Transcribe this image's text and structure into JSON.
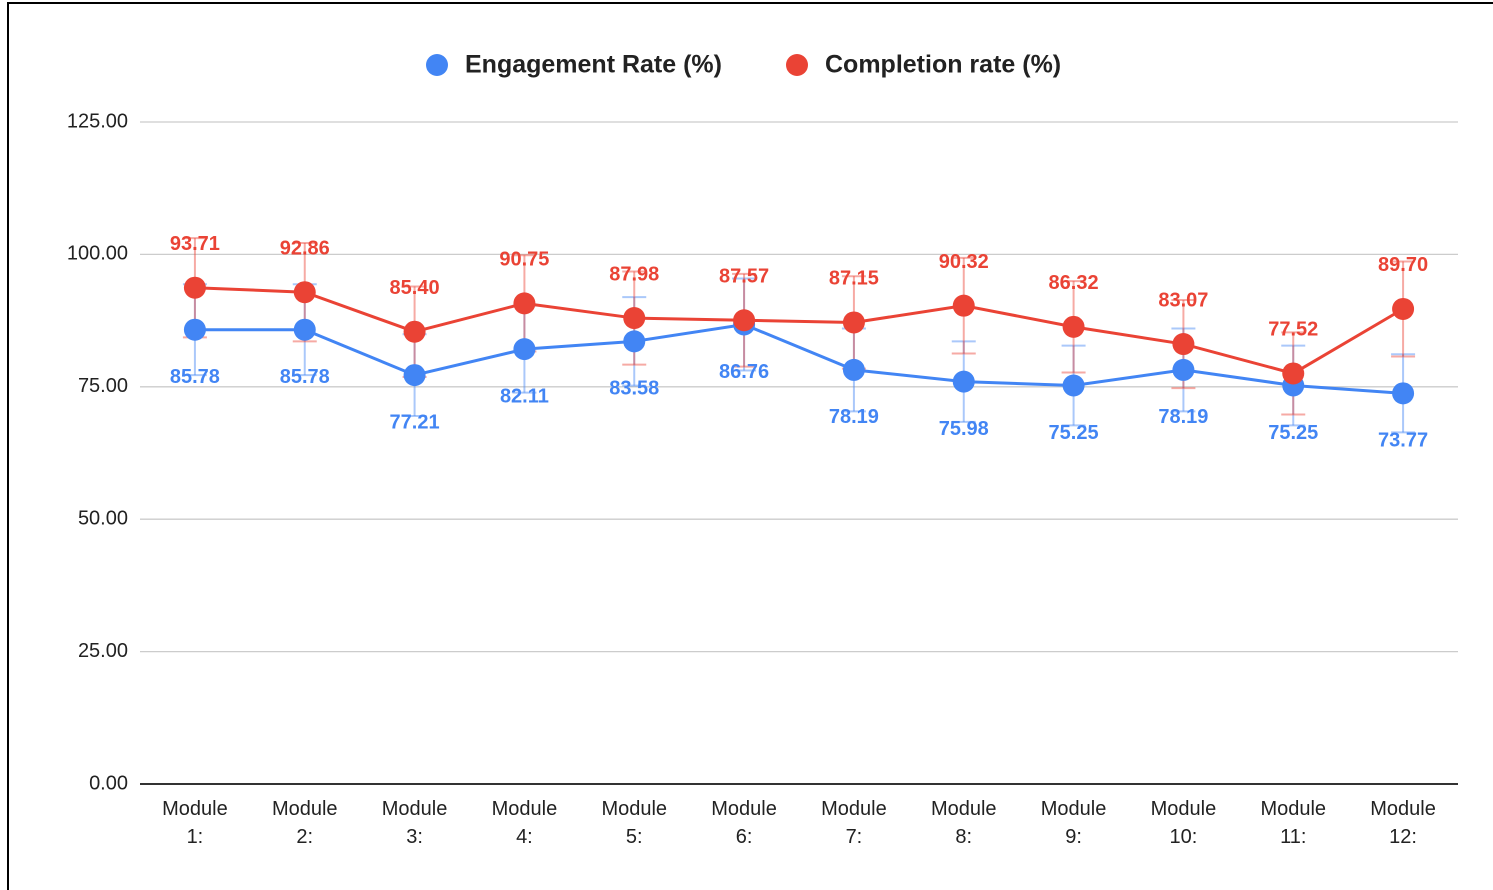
{
  "chart_data": {
    "type": "line",
    "categories": [
      "Module 1:",
      "Module 2:",
      "Module 3:",
      "Module 4:",
      "Module 5:",
      "Module 6:",
      "Module 7:",
      "Module 8:",
      "Module 9:",
      "Module 10:",
      "Module 11:",
      "Module 12:"
    ],
    "series": [
      {
        "name": "Engagement Rate (%)",
        "color": "#4285f4",
        "values": [
          85.78,
          85.78,
          77.21,
          82.11,
          83.58,
          86.76,
          78.19,
          75.98,
          75.25,
          78.19,
          75.25,
          73.77
        ],
        "value_labels": [
          "85.78",
          "85.78",
          "77.21",
          "82.11",
          "83.58",
          "86.76",
          "78.19",
          "75.98",
          "75.25",
          "78.19",
          "75.25",
          "73.77"
        ],
        "errors": [
          8.58,
          8.58,
          7.72,
          8.21,
          8.36,
          8.68,
          7.82,
          7.6,
          7.53,
          7.82,
          7.53,
          7.38
        ]
      },
      {
        "name": "Completion rate (%)",
        "color": "#ea4335",
        "values": [
          93.71,
          92.86,
          85.4,
          90.75,
          87.98,
          87.57,
          87.15,
          90.32,
          86.32,
          83.07,
          77.52,
          89.7
        ],
        "value_labels": [
          "93.71",
          "92.86",
          "85.40",
          "90.75",
          "87.98",
          "87.57",
          "87.15",
          "90.32",
          "86.32",
          "83.07",
          "77.52",
          "89.70"
        ],
        "errors": [
          9.37,
          9.29,
          8.54,
          9.08,
          8.8,
          8.76,
          8.72,
          9.03,
          8.63,
          8.31,
          7.75,
          8.97
        ]
      }
    ],
    "ylim": [
      0,
      125
    ],
    "yticks": [
      {
        "value": 0,
        "label": "0.00"
      },
      {
        "value": 25,
        "label": "25.00"
      },
      {
        "value": 50,
        "label": "50.00"
      },
      {
        "value": 75,
        "label": "75.00"
      },
      {
        "value": 100,
        "label": "100.00"
      },
      {
        "value": 125,
        "label": "125.00"
      }
    ],
    "grid": true,
    "legend": "top"
  }
}
